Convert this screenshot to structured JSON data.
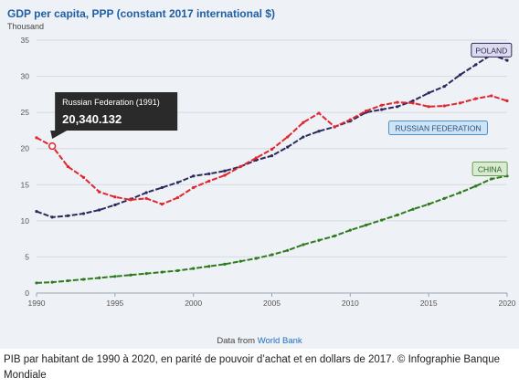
{
  "chart_data": {
    "type": "line",
    "title": "GDP per capita, PPP (constant 2017 international $)",
    "ylabel": "Thousand",
    "xlim": [
      1990,
      2020
    ],
    "ylim": [
      0,
      35
    ],
    "x_ticks": [
      1990,
      1995,
      2000,
      2005,
      2010,
      2015,
      2020
    ],
    "y_ticks": [
      0,
      5,
      10,
      15,
      20,
      25,
      30,
      35
    ],
    "grid": "horizontal",
    "x": [
      1990,
      1991,
      1992,
      1993,
      1994,
      1995,
      1996,
      1997,
      1998,
      1999,
      2000,
      2001,
      2002,
      2003,
      2004,
      2005,
      2006,
      2007,
      2008,
      2009,
      2010,
      2011,
      2012,
      2013,
      2014,
      2015,
      2016,
      2017,
      2018,
      2019,
      2020
    ],
    "series": [
      {
        "name": "POLAND",
        "color": "#2b2a5e",
        "values": [
          11.3,
          10.5,
          10.7,
          11.0,
          11.5,
          12.2,
          13.0,
          13.9,
          14.6,
          15.3,
          16.2,
          16.5,
          16.9,
          17.5,
          18.4,
          19.0,
          20.2,
          21.6,
          22.4,
          23.0,
          23.8,
          25.0,
          25.4,
          25.8,
          26.6,
          27.7,
          28.6,
          30.2,
          31.6,
          33.0,
          32.2
        ]
      },
      {
        "name": "RUSSIAN FEDERATION",
        "color": "#e0262e",
        "values": [
          21.5,
          20.34,
          17.5,
          16.0,
          14.0,
          13.3,
          12.9,
          13.1,
          12.3,
          13.2,
          14.6,
          15.5,
          16.3,
          17.5,
          18.7,
          19.9,
          21.6,
          23.6,
          24.9,
          23.0,
          24.0,
          25.2,
          26.0,
          26.4,
          26.3,
          25.8,
          25.9,
          26.3,
          26.9,
          27.3,
          26.6
        ]
      },
      {
        "name": "CHINA",
        "color": "#2e7a1e",
        "values": [
          1.4,
          1.5,
          1.7,
          1.9,
          2.1,
          2.3,
          2.5,
          2.7,
          2.9,
          3.1,
          3.4,
          3.7,
          4.0,
          4.4,
          4.8,
          5.3,
          5.9,
          6.7,
          7.3,
          7.9,
          8.7,
          9.4,
          10.1,
          10.8,
          11.6,
          12.3,
          13.1,
          13.9,
          14.8,
          15.8,
          16.2
        ]
      }
    ],
    "tooltip": {
      "series": "RUSSIAN FEDERATION",
      "x": 1991,
      "label": "Russian Federation (1991)",
      "value": "20,340.132"
    },
    "labels": [
      {
        "text": "POLAND",
        "series": "POLAND",
        "bg": "#dddbee",
        "border": "#2b2a5e",
        "color": "#2b2a5e"
      },
      {
        "text": "RUSSIAN FEDERATION",
        "series": "RUSSIAN FEDERATION",
        "bg": "#cfe3f3",
        "border": "#4d8fc9",
        "color": "#1c4f86"
      },
      {
        "text": "CHINA",
        "series": "CHINA",
        "bg": "#d9ecd0",
        "border": "#6a9e57",
        "color": "#2e5f22"
      }
    ]
  },
  "source": {
    "prefix": "Data from",
    "link": "World Bank"
  },
  "caption": "PIB par habitant de 1990 à 2020, en parité de pouvoir d’achat et en dollars de 2017. © Infographie Banque Mondiale"
}
